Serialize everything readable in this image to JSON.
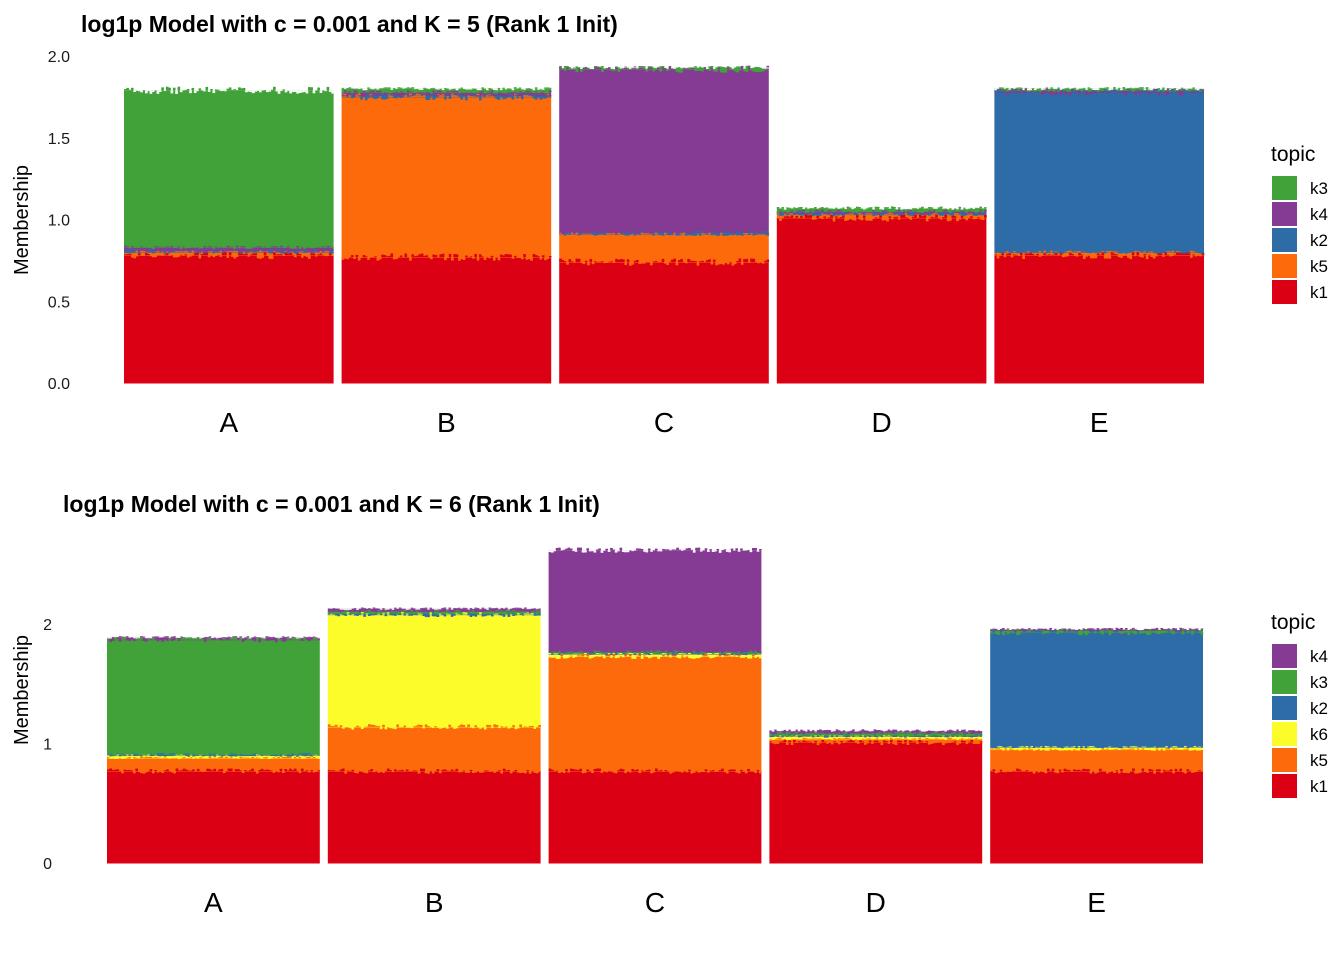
{
  "colors": {
    "k1": "#DC0015",
    "k2": "#2E6CA8",
    "k3": "#41A23A",
    "k4": "#853A93",
    "k5": "#FD6A0B",
    "k6": "#FCFC2B"
  },
  "chart_data": [
    {
      "type": "bar",
      "stacked": true,
      "title": "log1p Model with c = 0.001 and K = 5 (Rank 1 Init)",
      "xlabel": "",
      "ylabel": "Membership",
      "ylim": [
        0,
        2.0
      ],
      "y_ticks": [
        "0.0",
        "0.5",
        "1.0",
        "1.5",
        "2.0"
      ],
      "y_tick_values": [
        0,
        0.5,
        1.0,
        1.5,
        2.0
      ],
      "grid": false,
      "legend_title": "topic",
      "legend_position": "right",
      "legend_entries": [
        "k3",
        "k4",
        "k2",
        "k5",
        "k1"
      ],
      "stack_order_bottom_to_top": [
        "k1",
        "k5",
        "k2",
        "k4",
        "k3"
      ],
      "categories": [
        "A",
        "B",
        "C",
        "D",
        "E"
      ],
      "series": [
        {
          "name": "k1",
          "values": [
            0.78,
            0.77,
            0.74,
            1.01,
            0.78
          ]
        },
        {
          "name": "k5",
          "values": [
            0.02,
            0.98,
            0.17,
            0.02,
            0.02
          ]
        },
        {
          "name": "k2",
          "values": [
            0.01,
            0.01,
            0.01,
            0.01,
            0.98
          ]
        },
        {
          "name": "k4",
          "values": [
            0.02,
            0.02,
            1.0,
            0.01,
            0.01
          ]
        },
        {
          "name": "k3",
          "values": [
            0.96,
            0.02,
            0.01,
            0.02,
            0.01
          ]
        }
      ]
    },
    {
      "type": "bar",
      "stacked": true,
      "title": "log1p Model with c = 0.001 and K = 6 (Rank 1 Init)",
      "xlabel": "",
      "ylabel": "Membership",
      "ylim": [
        0,
        2.68
      ],
      "y_ticks": [
        "0",
        "1",
        "2"
      ],
      "y_tick_values": [
        0,
        1,
        2
      ],
      "grid": false,
      "legend_title": "topic",
      "legend_position": "right",
      "legend_entries": [
        "k4",
        "k3",
        "k2",
        "k6",
        "k5",
        "k1"
      ],
      "stack_order_bottom_to_top": [
        "k1",
        "k5",
        "k6",
        "k2",
        "k3",
        "k4"
      ],
      "categories": [
        "A",
        "B",
        "C",
        "D",
        "E"
      ],
      "series": [
        {
          "name": "k1",
          "values": [
            0.77,
            0.77,
            0.77,
            1.01,
            0.77
          ]
        },
        {
          "name": "k5",
          "values": [
            0.11,
            0.37,
            0.96,
            0.03,
            0.18
          ]
        },
        {
          "name": "k6",
          "values": [
            0.02,
            0.94,
            0.02,
            0.02,
            0.02
          ]
        },
        {
          "name": "k2",
          "values": [
            0.01,
            0.01,
            0.01,
            0.01,
            0.96
          ]
        },
        {
          "name": "k3",
          "values": [
            0.96,
            0.02,
            0.01,
            0.02,
            0.02
          ]
        },
        {
          "name": "k4",
          "values": [
            0.02,
            0.02,
            0.85,
            0.02,
            0.01
          ]
        }
      ]
    }
  ]
}
